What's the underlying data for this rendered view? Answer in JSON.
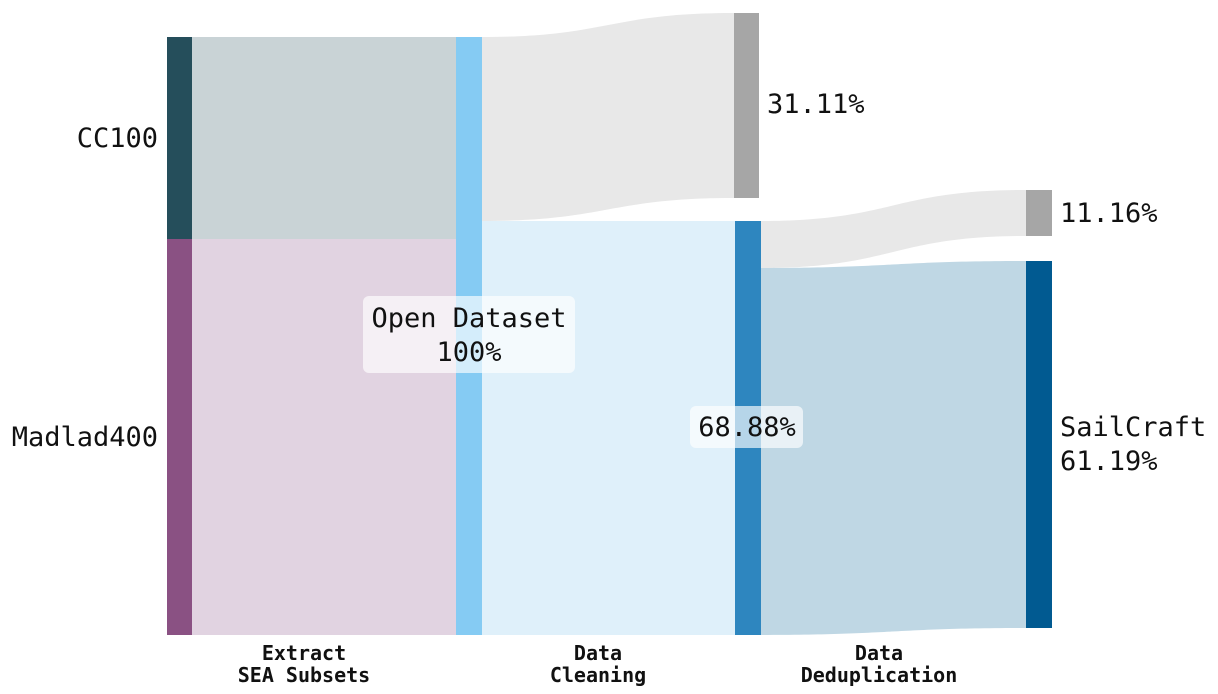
{
  "nodes": {
    "cc100": {
      "label": "CC100",
      "color": "#254e5b"
    },
    "madlad": {
      "label": "Madlad400",
      "color": "#8a5183"
    },
    "open_dataset": {
      "label": "Open Dataset",
      "value": "100%",
      "color": "#85cbf3"
    },
    "cleaned": {
      "label": "68.88%",
      "color": "#2e86bf"
    },
    "removed_cleaning": {
      "label": "31.11%",
      "color": "#a6a6a6"
    },
    "removed_dedup": {
      "label": "11.16%",
      "color": "#a6a6a6"
    },
    "sailcraft": {
      "label": "SailCraft",
      "value": "61.19%",
      "color": "#015a91"
    }
  },
  "stages": [
    {
      "line1": "Extract",
      "line2": "SEA Subsets"
    },
    {
      "line1": "Data",
      "line2": "Cleaning"
    },
    {
      "line1": "Data",
      "line2": "Deduplication"
    }
  ],
  "flow_colors": {
    "cc100_flow": "#c9d3d6",
    "madlad_flow": "#e1d3e1",
    "clean_flow": "#dff0fa",
    "removed_flow": "#e8e8e8",
    "sailcraft_flow": "#bfd7e4"
  }
}
